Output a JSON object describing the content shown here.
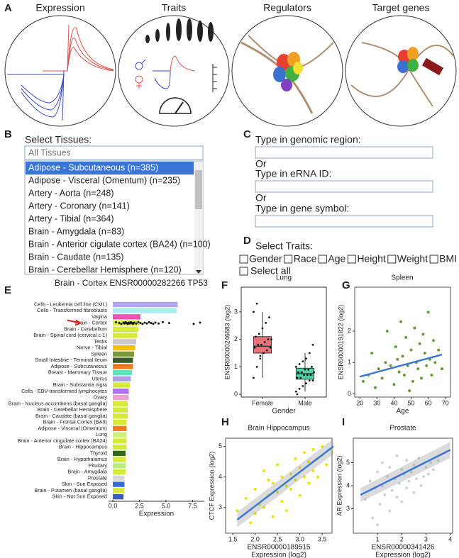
{
  "panels": [
    "A",
    "B",
    "C",
    "D",
    "E",
    "F",
    "G",
    "H",
    "I"
  ],
  "illustrations": [
    "Expression",
    "Traits",
    "Regulators",
    "Target genes"
  ],
  "tissue_selector": {
    "label": "Select Tissues:",
    "search": "All Tissues",
    "options": [
      "Adipose - Subcutaneous (n=385)",
      "Adipose - Visceral (Omentum) (n=235)",
      "Artery - Aorta (n=248)",
      "Artery - Coronary (n=141)",
      "Artery - Tibial (n=364)",
      "Brain - Amygdala (n=83)",
      "Brain - Anterior cigulate cortex (BA24) (n=100)",
      "Brain - Caudate (n=135)",
      "Brain - Cerebellar Hemisphere (n=120)"
    ]
  },
  "search": {
    "region_label": "Type in genomic region:",
    "or_1": "Or",
    "erna_label": "Type in eRNA ID:",
    "or_2": "Or",
    "gene_label": "Type in gene symbol:"
  },
  "traits": {
    "label": "Select Traits:",
    "options": [
      "Gender",
      "Race",
      "Age",
      "Height",
      "Weight",
      "BMI"
    ],
    "select_all": "Select all"
  },
  "chart_data": [
    {
      "type": "bar",
      "horizontal": true,
      "title": "Brain - Cortex ENSR00000282266 TP53",
      "xlabel": "Expression",
      "categories": [
        "Cells - Leukemia cell line (CML)",
        "Cells - Transformed fibroblasts",
        "Vagina",
        "Brain - Cortex",
        "Brain - Cerebellum",
        "Brain - Spinal cord (cervical c-1)",
        "Testis",
        "Nerve - Tibial",
        "Spleen",
        "Small Intestine - Terminal Ileum",
        "Adipose - Subcutaneous",
        "Breast - Mammary Tissue",
        "Uterus",
        "Brain - Substantia nigra",
        "Cells - EBV-transformed lymphocytes",
        "Ovary",
        "Brain - Nucleus accumbens (basal ganglia)",
        "Brain - Cerebellar Hemisphere",
        "Brain - Caudate (basal ganglia)",
        "Brain - Frontal Cortex (BA9)",
        "Adipose - Visceral (Omentum)",
        "Lung",
        "Brain - Anterior cingulate cortex (BA24)",
        "Brain - Hippocampus",
        "Thyroid",
        "Brain - Hypothalamus",
        "Pituitary",
        "Brain - Amygdala",
        "Prostate",
        "Skin - Sun Exposed",
        "Brain - Putamen (basal ganglia)",
        "Skin - Not Sun Exposed"
      ],
      "values": [
        6.1,
        6.0,
        2.6,
        2.5,
        2.4,
        2.3,
        2.2,
        2.1,
        2.0,
        1.9,
        1.9,
        1.8,
        1.7,
        1.6,
        1.5,
        1.5,
        1.4,
        1.4,
        1.4,
        1.3,
        1.3,
        1.3,
        1.3,
        1.3,
        1.2,
        1.2,
        1.2,
        1.2,
        1.1,
        1.1,
        1.1,
        1.0
      ],
      "colors": [
        "#b3a6f0",
        "#a8eef0",
        "#f050b0",
        "#d6ea3a",
        "#d6ea3a",
        "#d6ea3a",
        "#c8c8c8",
        "#f5c000",
        "#7a9a3a",
        "#3a5a2a",
        "#f07a20",
        "#5de6b6",
        "#b0a0e6",
        "#d6ea3a",
        "#b070f0",
        "#f0a0d0",
        "#d6ea3a",
        "#d6ea3a",
        "#d6ea3a",
        "#d6ea3a",
        "#f07a20",
        "#c8f07a",
        "#d6ea3a",
        "#d6ea3a",
        "#2f6a1a",
        "#d6ea3a",
        "#b6f07a",
        "#d6ea3a",
        "#d8d8d8",
        "#3a6ad6",
        "#d6ea3a",
        "#3a5ac6"
      ],
      "points": [
        0.3,
        0.6,
        0.8,
        1.0,
        1.1,
        1.2,
        1.3,
        1.4,
        1.5,
        1.6,
        1.7,
        1.8,
        1.9,
        2.0,
        2.2,
        2.4,
        2.6,
        2.8,
        3.0,
        3.2,
        3.4,
        3.6,
        3.8,
        4.0,
        4.3,
        4.7,
        5.3,
        7.6,
        8.2
      ],
      "xlim": [
        -0.4,
        8.6
      ],
      "xticks": [
        {
          "value": 0,
          "label": "0.0"
        },
        2.5,
        {
          "value": 5,
          "label": "5.0"
        },
        7.5
      ]
    },
    {
      "type": "box",
      "title": "Lung",
      "xlabel": "Gender",
      "ylabel": "ENSR00000246683 (log2)",
      "categories": [
        "Female",
        "Male"
      ],
      "series": [
        {
          "color": "#e8727a",
          "min": 0.6,
          "q1": 1.5,
          "median": 1.75,
          "q3": 2.1,
          "max": 3.0,
          "points": [
            0.6,
            1.0,
            1.3,
            1.5,
            1.6,
            1.7,
            1.7,
            1.8,
            1.8,
            1.9,
            2.0,
            2.0,
            2.1,
            2.2,
            2.4,
            2.6,
            2.8,
            3.0,
            3.3,
            1.4
          ]
        },
        {
          "color": "#4fd6a6",
          "min": 0.1,
          "q1": 0.55,
          "median": 0.75,
          "q3": 0.95,
          "max": 1.5,
          "points": [
            0.1,
            0.2,
            0.3,
            0.4,
            0.5,
            0.5,
            0.6,
            0.6,
            0.7,
            0.7,
            0.7,
            0.8,
            0.8,
            0.8,
            0.9,
            0.9,
            1.0,
            1.0,
            1.1,
            1.2,
            1.3,
            1.5,
            1.8,
            0.0
          ]
        }
      ],
      "ylim": [
        -0.1,
        3.9
      ],
      "yticks": [
        0,
        1,
        2,
        3
      ]
    },
    {
      "type": "scatter",
      "title": "Spleen",
      "xlabel": [
        "Age"
      ],
      "ylabel": "ENSR00000191822 (log2)",
      "color": "#6b9a3b",
      "x": [
        22,
        25,
        27,
        29,
        31,
        33,
        35,
        36,
        38,
        40,
        41,
        42,
        43,
        44,
        45,
        46,
        47,
        48,
        49,
        50,
        51,
        52,
        53,
        54,
        55,
        56,
        57,
        58,
        59,
        60,
        61,
        62,
        63,
        64,
        66,
        68
      ],
      "y": [
        0.4,
        0.6,
        1.3,
        0.2,
        0.8,
        0.5,
        1.0,
        2.0,
        0.9,
        0.3,
        1.5,
        1.1,
        0.7,
        2.3,
        1.2,
        0.6,
        1.8,
        0.9,
        0.1,
        1.4,
        0.4,
        2.1,
        1.0,
        0.8,
        1.6,
        0.5,
        1.9,
        1.3,
        0.9,
        2.6,
        1.1,
        0.6,
        1.7,
        1.0,
        1.4,
        0.8
      ],
      "fit": {
        "color": "#3a78d4",
        "x": [
          20,
          68
        ],
        "y": [
          0.55,
          1.25
        ]
      },
      "xlim": [
        17,
        73
      ],
      "ylim": [
        -0.1,
        3.4
      ],
      "xticks": [
        20,
        30,
        40,
        50,
        60,
        70
      ],
      "yticks": [
        0,
        1,
        2
      ]
    },
    {
      "type": "scatter",
      "title": "Brain Hippocampus",
      "xlabel": [
        "ENSR00000189515",
        "Expression (log2)"
      ],
      "ylabel": "CTCF Expression (log2)",
      "color": "#e6e600",
      "x": [
        1.6,
        1.8,
        1.9,
        2.0,
        2.0,
        2.1,
        2.2,
        2.2,
        2.3,
        2.4,
        2.4,
        2.5,
        2.5,
        2.6,
        2.6,
        2.7,
        2.7,
        2.8,
        2.8,
        2.9,
        2.9,
        3.0,
        3.0,
        3.1,
        3.1,
        3.2,
        3.2,
        3.3,
        3.3,
        3.4,
        3.4,
        3.5,
        3.5,
        3.6,
        3.7,
        2.3
      ],
      "y": [
        2.9,
        3.3,
        2.5,
        3.6,
        2.8,
        3.1,
        4.2,
        3.0,
        3.4,
        2.7,
        3.8,
        3.5,
        4.4,
        3.2,
        4.0,
        3.7,
        2.9,
        4.1,
        3.6,
        4.6,
        3.9,
        4.3,
        3.4,
        4.8,
        4.0,
        4.5,
        3.8,
        4.9,
        4.2,
        4.6,
        4.0,
        4.7,
        5.0,
        4.4,
        4.9,
        3.9
      ],
      "fit": {
        "color": "#3a78d4",
        "x": [
          1.6,
          3.75
        ],
        "y": [
          2.6,
          5.0
        ],
        "lower": [
          2.35,
          4.75
        ],
        "upper": [
          2.85,
          5.25
        ]
      },
      "xlim": [
        1.34,
        3.72
      ],
      "ylim": [
        2.16,
        5.27
      ],
      "xticks": [
        1.5,
        {
          "value": 2,
          "label": "2.0"
        },
        2.5,
        {
          "value": 3,
          "label": "3.0"
        },
        3.5
      ],
      "yticks": [
        3,
        4,
        5
      ]
    },
    {
      "type": "scatter",
      "title": "Prostate",
      "xlabel": [
        "ENSR00000341426",
        "Expression (log2)"
      ],
      "ylabel": "AR Expression (log2)",
      "color": "#ccd3d3",
      "x": [
        0.5,
        0.7,
        0.8,
        0.9,
        1.0,
        1.1,
        1.2,
        1.2,
        1.3,
        1.4,
        1.5,
        1.5,
        1.6,
        1.7,
        1.8,
        1.8,
        1.9,
        2.0,
        2.0,
        2.1,
        2.2,
        2.2,
        2.3,
        2.4,
        2.5,
        2.5,
        2.6,
        2.7,
        2.8,
        2.9,
        3.0,
        3.1,
        3.2,
        3.3,
        3.5,
        1.0
      ],
      "y": [
        3.4,
        4.2,
        2.6,
        3.9,
        4.6,
        3.2,
        4.0,
        5.0,
        3.6,
        4.4,
        2.9,
        4.8,
        3.8,
        4.3,
        5.3,
        3.5,
        4.1,
        4.7,
        3.3,
        4.5,
        3.9,
        5.1,
        4.2,
        4.6,
        3.7,
        4.9,
        4.3,
        5.2,
        4.0,
        4.4,
        4.8,
        4.5,
        5.0,
        4.7,
        5.1,
        2.3
      ],
      "fit": {
        "color": "#3a78d4",
        "x": [
          0.3,
          4.0
        ],
        "y": [
          3.6,
          5.55
        ],
        "lower": [
          3.3,
          5.2
        ],
        "upper": [
          3.9,
          5.9
        ]
      },
      "xlim": [
        0,
        4.1
      ],
      "ylim": [
        1.94,
        6.06
      ],
      "xticks": [
        1,
        2,
        3,
        4
      ],
      "yticks": [
        3,
        4,
        5
      ]
    }
  ]
}
